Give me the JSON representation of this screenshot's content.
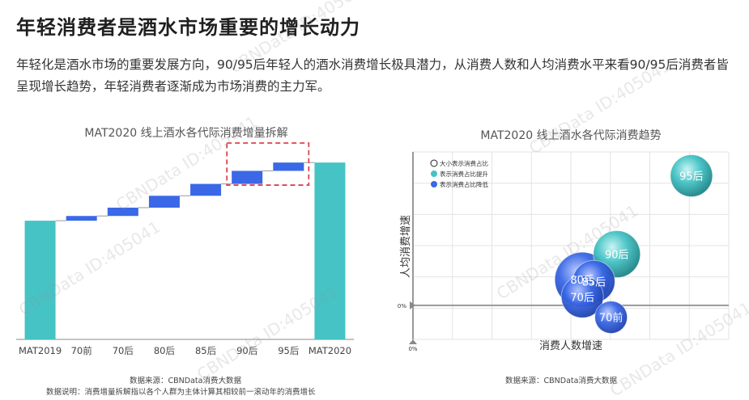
{
  "header": {
    "title": "年轻消费者是酒水市场重要的增长动力",
    "intro": "年轻化是酒水市场的重要发展方向，90/95后年轻人的酒水消费增长极具潜力，从消费人数和人均消费水平来看90/95后消费者皆呈现增长趋势，年轻消费者逐渐成为市场消费的主力军。"
  },
  "watermark": "CBNData ID:405041",
  "chart_data": [
    {
      "type": "bar",
      "subtype": "waterfall",
      "title": "MAT2020 线上酒水各代际消费增量拆解",
      "categories": [
        "MAT2019",
        "70前",
        "70后",
        "80后",
        "85后",
        "90后",
        "95后",
        "MAT2020"
      ],
      "values": [
        100,
        4,
        7,
        10,
        10,
        11,
        7,
        149
      ],
      "kinds": [
        "total",
        "increment",
        "increment",
        "increment",
        "increment",
        "increment",
        "increment",
        "total"
      ],
      "highlighted": [
        "90后",
        "95后"
      ],
      "colors": {
        "total": "#45c3c5",
        "increment": "#3a68e6",
        "connector": "#999999",
        "highlight": "#e0424c"
      },
      "xlabel": "",
      "ylabel": "",
      "ylim": [
        0,
        160
      ],
      "source": "数据来源：CBNData消费大数据",
      "note": "数据说明：消费增量拆解指以各个人群为主体计算其相较前一滚动年的消费增长"
    },
    {
      "type": "scatter",
      "subtype": "bubble",
      "title": "MAT2020 线上酒水各代际消费趋势",
      "xlabel": "消费人数增速",
      "ylabel": "人均消费增速",
      "origin_label_x": "0%",
      "origin_label_y": "0%",
      "xlim": [
        -1,
        10
      ],
      "ylim": [
        -2,
        9
      ],
      "points": [
        {
          "label": "95后",
          "x": 8.7,
          "y": 7.6,
          "size": 26,
          "trend": "up"
        },
        {
          "label": "90后",
          "x": 6.1,
          "y": 3.0,
          "size": 29,
          "trend": "up"
        },
        {
          "label": "80后",
          "x": 4.9,
          "y": 1.5,
          "size": 34,
          "trend": "down"
        },
        {
          "label": "85后",
          "x": 5.3,
          "y": 1.4,
          "size": 26,
          "trend": "down"
        },
        {
          "label": "70后",
          "x": 4.9,
          "y": 0.5,
          "size": 26,
          "trend": "down"
        },
        {
          "label": "70前",
          "x": 5.9,
          "y": -0.7,
          "size": 20,
          "trend": "down"
        }
      ],
      "legend": {
        "position": "top-left",
        "items": [
          {
            "key": "size",
            "label": "大小表示消费占比"
          },
          {
            "key": "up",
            "label": "表示消费占比提升",
            "color": "#45c3c5"
          },
          {
            "key": "down",
            "label": "表示消费占比降低",
            "color": "#3a68e6"
          }
        ]
      },
      "grid": true,
      "source": "数据来源：CBNData消费大数据"
    }
  ]
}
